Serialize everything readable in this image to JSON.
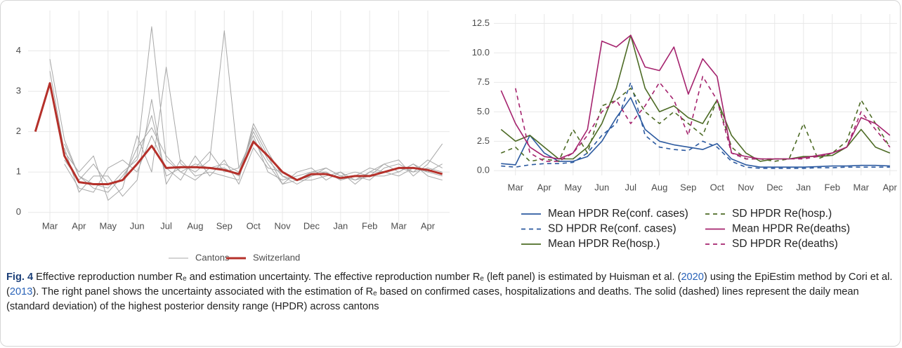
{
  "chart_data": [
    {
      "type": "line",
      "categories": [
        null,
        "Mar",
        null,
        "Apr",
        null,
        "May",
        null,
        "Jun",
        null,
        "Jul",
        null,
        "Aug",
        null,
        "Sep",
        null,
        "Oct",
        null,
        "Nov",
        null,
        "Dec",
        null,
        "Jan",
        null,
        "Feb",
        null,
        "Mar",
        null,
        "Apr",
        null
      ],
      "ylim": [
        -0.3,
        5.0
      ],
      "yticks": [
        0,
        1,
        2,
        3,
        4
      ],
      "grid": true,
      "legend": "bottom",
      "series": [
        {
          "name": "Cantons",
          "color": "#a8a8a8",
          "lines": [
            [
              null,
              3.8,
              1.8,
              0.9,
              0.6,
              0.5,
              0.9,
              1.4,
              4.6,
              1.3,
              1.0,
              1.2,
              1.1,
              1.2,
              1.0,
              2.0,
              1.3,
              0.9,
              0.7,
              0.9,
              1.0,
              0.8,
              0.9,
              0.8,
              1.1,
              1.2,
              1.0,
              1.1,
              1.0
            ],
            [
              null,
              3.5,
              1.5,
              1.0,
              1.4,
              0.3,
              0.6,
              1.9,
              1.0,
              3.6,
              1.2,
              1.0,
              1.3,
              4.5,
              1.1,
              1.8,
              1.2,
              0.7,
              1.0,
              1.1,
              0.8,
              1.0,
              0.8,
              1.0,
              1.2,
              1.3,
              0.9,
              1.2,
              1.7
            ],
            [
              null,
              null,
              1.6,
              0.5,
              0.9,
              0.9,
              0.4,
              0.8,
              2.8,
              0.7,
              1.3,
              0.9,
              1.0,
              0.9,
              0.8,
              2.2,
              1.5,
              0.9,
              0.8,
              1.0,
              1.1,
              0.9,
              1.0,
              0.9,
              0.9,
              1.0,
              1.2,
              0.9,
              0.8
            ],
            [
              null,
              null,
              1.2,
              0.6,
              0.5,
              1.1,
              1.3,
              1.0,
              1.9,
              1.1,
              0.8,
              1.4,
              0.9,
              1.3,
              0.7,
              1.6,
              1.1,
              1.0,
              0.8,
              0.8,
              0.9,
              1.0,
              0.7,
              1.0,
              1.0,
              1.1,
              1.0,
              1.3,
              1.1
            ],
            [
              null,
              null,
              1.7,
              0.9,
              0.7,
              0.6,
              1.0,
              1.3,
              2.4,
              0.9,
              1.1,
              1.1,
              1.5,
              1.0,
              1.1,
              1.9,
              1.0,
              0.8,
              0.9,
              1.0,
              1.0,
              0.8,
              0.9,
              1.1,
              1.0,
              0.9,
              1.1,
              1.0,
              0.9
            ],
            [
              null,
              null,
              1.3,
              0.8,
              1.2,
              0.7,
              0.8,
              1.6,
              2.1,
              1.4,
              1.0,
              0.8,
              1.1,
              1.1,
              0.9,
              2.1,
              1.4,
              0.7,
              0.8,
              0.9,
              1.1,
              0.9,
              0.8,
              0.9,
              1.2,
              1.0,
              1.2,
              1.0,
              1.2
            ]
          ]
        },
        {
          "name": "Switzerland",
          "color": "#b5302a",
          "values": [
            2.0,
            3.2,
            1.4,
            0.75,
            0.7,
            0.7,
            0.8,
            1.2,
            1.65,
            1.1,
            1.12,
            1.12,
            1.1,
            1.05,
            0.95,
            1.75,
            1.4,
            1.0,
            0.8,
            0.95,
            0.95,
            0.85,
            0.9,
            0.9,
            1.0,
            1.1,
            1.1,
            1.05,
            0.95
          ]
        }
      ]
    },
    {
      "type": "line",
      "categories": [
        null,
        "Mar",
        null,
        "Apr",
        null,
        "May",
        null,
        "Jun",
        null,
        "Jul",
        null,
        "Aug",
        null,
        "Sep",
        null,
        "Oct",
        null,
        "Nov",
        null,
        "Dec",
        null,
        "Jan",
        null,
        "Feb",
        null,
        "Mar",
        null,
        "Apr"
      ],
      "ylim": [
        -0.4,
        13.3
      ],
      "yticks": [
        {
          "value": 0,
          "label": "0.0"
        },
        2.5,
        {
          "value": 5,
          "label": "5.0"
        },
        7.5,
        {
          "value": 10,
          "label": "10.0"
        },
        12.5
      ],
      "grid": true,
      "legend": "bottom",
      "series": [
        {
          "name": "Mean HPDR Re(conf. cases)",
          "color": "#2c5aa0",
          "dash": false,
          "values": [
            0.6,
            0.5,
            3.0,
            1.5,
            0.8,
            0.8,
            1.2,
            2.5,
            4.5,
            6.2,
            3.5,
            2.5,
            2.2,
            2.0,
            1.8,
            2.3,
            1.0,
            0.5,
            0.3,
            0.3,
            0.3,
            0.3,
            0.35,
            0.4,
            0.4,
            0.45,
            0.45,
            0.4
          ]
        },
        {
          "name": "SD HPDR Re(conf. cases)",
          "color": "#2c5aa0",
          "dash": true,
          "values": [
            0.4,
            0.3,
            0.5,
            0.6,
            0.6,
            0.7,
            1.5,
            3.0,
            4.0,
            7.5,
            3.0,
            2.0,
            1.8,
            1.7,
            2.5,
            2.0,
            0.8,
            0.3,
            0.2,
            0.2,
            0.2,
            0.2,
            0.25,
            0.25,
            0.3,
            0.3,
            0.3,
            0.3
          ]
        },
        {
          "name": "Mean HPDR Re(hosp.)",
          "color": "#4d6b25",
          "dash": false,
          "values": [
            3.5,
            2.5,
            3.0,
            2.0,
            1.0,
            1.0,
            2.0,
            4.0,
            7.0,
            11.5,
            7.0,
            5.0,
            5.5,
            4.5,
            4.0,
            6.0,
            3.0,
            1.5,
            0.8,
            1.0,
            1.0,
            1.2,
            1.2,
            1.3,
            2.0,
            3.5,
            2.0,
            1.5
          ]
        },
        {
          "name": "SD HPDR Re(hosp.)",
          "color": "#4d6b25",
          "dash": true,
          "values": [
            1.5,
            2.0,
            0.8,
            1.0,
            0.8,
            3.5,
            1.5,
            5.5,
            6.0,
            7.0,
            5.0,
            4.0,
            5.0,
            4.0,
            3.0,
            6.0,
            2.0,
            1.0,
            1.0,
            0.8,
            1.0,
            4.0,
            1.0,
            1.5,
            2.5,
            6.0,
            4.0,
            2.0
          ]
        },
        {
          "name": "Mean HPDR Re(deaths)",
          "color": "#a5236e",
          "dash": false,
          "values": [
            6.8,
            4.0,
            2.0,
            1.2,
            1.0,
            1.5,
            3.5,
            11.0,
            10.5,
            11.5,
            8.8,
            8.5,
            10.5,
            6.5,
            9.5,
            8.0,
            1.5,
            1.2,
            1.0,
            1.0,
            1.0,
            1.1,
            1.3,
            1.5,
            2.0,
            4.5,
            4.0,
            3.0
          ]
        },
        {
          "name": "SD HPDR Re(deaths)",
          "color": "#a5236e",
          "dash": true,
          "values": [
            null,
            7.0,
            1.5,
            0.8,
            0.8,
            1.5,
            3.0,
            5.0,
            6.0,
            4.0,
            5.5,
            7.5,
            6.0,
            3.0,
            8.0,
            6.0,
            1.5,
            1.0,
            1.0,
            1.0,
            1.0,
            1.0,
            1.2,
            1.5,
            2.0,
            5.0,
            3.5,
            2.0
          ]
        }
      ]
    }
  ],
  "caption": {
    "label": "Fig. 4",
    "parts": [
      {
        "text": " Effective reproduction number Rₑ and estimation uncertainty. The effective reproduction number Rₑ (left panel) is estimated by Huisman et al. (",
        "link": false
      },
      {
        "text": "2020",
        "link": true
      },
      {
        "text": ") using the EpiEstim method by Cori et al. (",
        "link": false
      },
      {
        "text": "2013",
        "link": true
      },
      {
        "text": "). The right panel shows the uncertainty associated with the estimation of Rₑ based on confirmed cases, hospitalizations and deaths. The solid (dashed) lines represent the daily mean (standard deviation) of the highest posterior density range (HPDR) across cantons",
        "link": false
      }
    ]
  }
}
